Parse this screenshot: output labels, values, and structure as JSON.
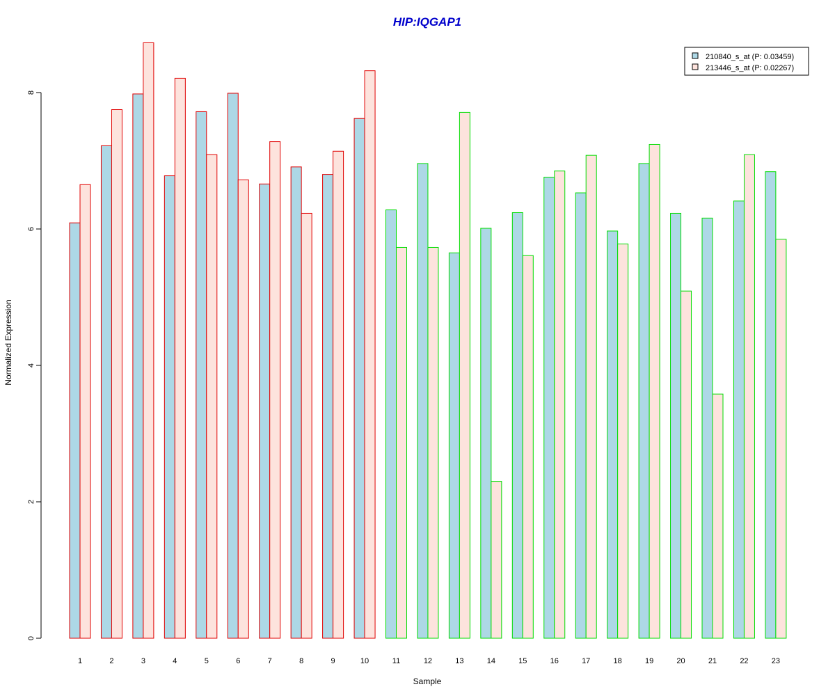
{
  "chart_data": {
    "type": "bar",
    "title": "HIP:IQGAP1",
    "xlabel": "Sample",
    "ylabel": "Normalized Expression",
    "ylim": [
      0,
      8.8
    ],
    "y_ticks": [
      "0",
      "2",
      "4",
      "6",
      "8"
    ],
    "categories": [
      "1",
      "2",
      "3",
      "4",
      "5",
      "6",
      "7",
      "8",
      "9",
      "10",
      "11",
      "12",
      "13",
      "14",
      "15",
      "16",
      "17",
      "18",
      "19",
      "20",
      "21",
      "22",
      "23"
    ],
    "series": [
      {
        "name": "210840_s_at (P: 0.03459)",
        "fill": "#add8e6",
        "values": [
          6.09,
          7.22,
          7.98,
          6.78,
          7.72,
          7.99,
          6.66,
          6.91,
          6.8,
          7.62,
          6.28,
          6.96,
          5.65,
          6.01,
          6.24,
          6.76,
          6.53,
          5.97,
          6.96,
          6.23,
          6.16,
          6.41,
          6.84
        ]
      },
      {
        "name": "213446_s_at (P: 0.02267)",
        "fill": "#fde3dd",
        "values": [
          6.65,
          7.75,
          8.73,
          8.21,
          7.09,
          6.72,
          7.28,
          6.23,
          7.14,
          8.32,
          5.73,
          5.73,
          7.71,
          2.3,
          5.61,
          6.85,
          7.08,
          5.78,
          7.24,
          5.09,
          3.58,
          7.09,
          5.85
        ]
      }
    ],
    "group_outline": [
      "red",
      "red",
      "red",
      "red",
      "red",
      "red",
      "red",
      "red",
      "red",
      "red",
      "green",
      "green",
      "green",
      "green",
      "green",
      "green",
      "green",
      "green",
      "green",
      "green",
      "green",
      "green",
      "green"
    ],
    "colors": {
      "title": "#0000cc",
      "red_group": "#e00000",
      "green_group": "#00dd00"
    },
    "legend_position": "top-right",
    "grid": false
  }
}
